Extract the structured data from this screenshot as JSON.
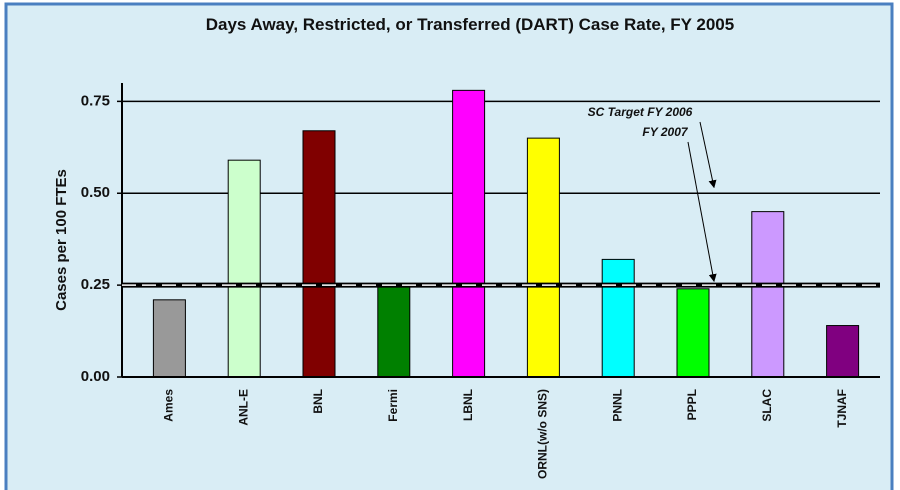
{
  "chart_data": {
    "type": "bar",
    "title": "Days Away, Restricted, or Transferred (DART) Case Rate, FY 2005",
    "ylabel": "Cases per 100 FTEs",
    "categories": [
      "Ames",
      "ANL-E",
      "BNL",
      "Fermi",
      "LBNL",
      "ORNL(w/o SNS)",
      "PNNL",
      "PPPL",
      "SLAC",
      "TJNAF"
    ],
    "values": [
      0.21,
      0.59,
      0.67,
      0.25,
      0.78,
      0.65,
      0.32,
      0.24,
      0.45,
      0.14
    ],
    "colors": [
      "#999999",
      "#ccffcc",
      "#800000",
      "#008000",
      "#ff00ff",
      "#ffff00",
      "#00ffff",
      "#00ff00",
      "#cc99ff",
      "#800080"
    ],
    "ylim": [
      0,
      0.8
    ],
    "yticks": [
      {
        "value": 0,
        "label": "0.00"
      },
      {
        "value": 0.25,
        "label": "0.25"
      },
      {
        "value": 0.5,
        "label": "0.50"
      },
      {
        "value": 0.75,
        "label": "0.75"
      }
    ],
    "grid": true,
    "targets": [
      {
        "label": "SC Target FY 2006",
        "value": 0.5
      },
      {
        "label": "FY 2007",
        "value": 0.25
      }
    ]
  }
}
